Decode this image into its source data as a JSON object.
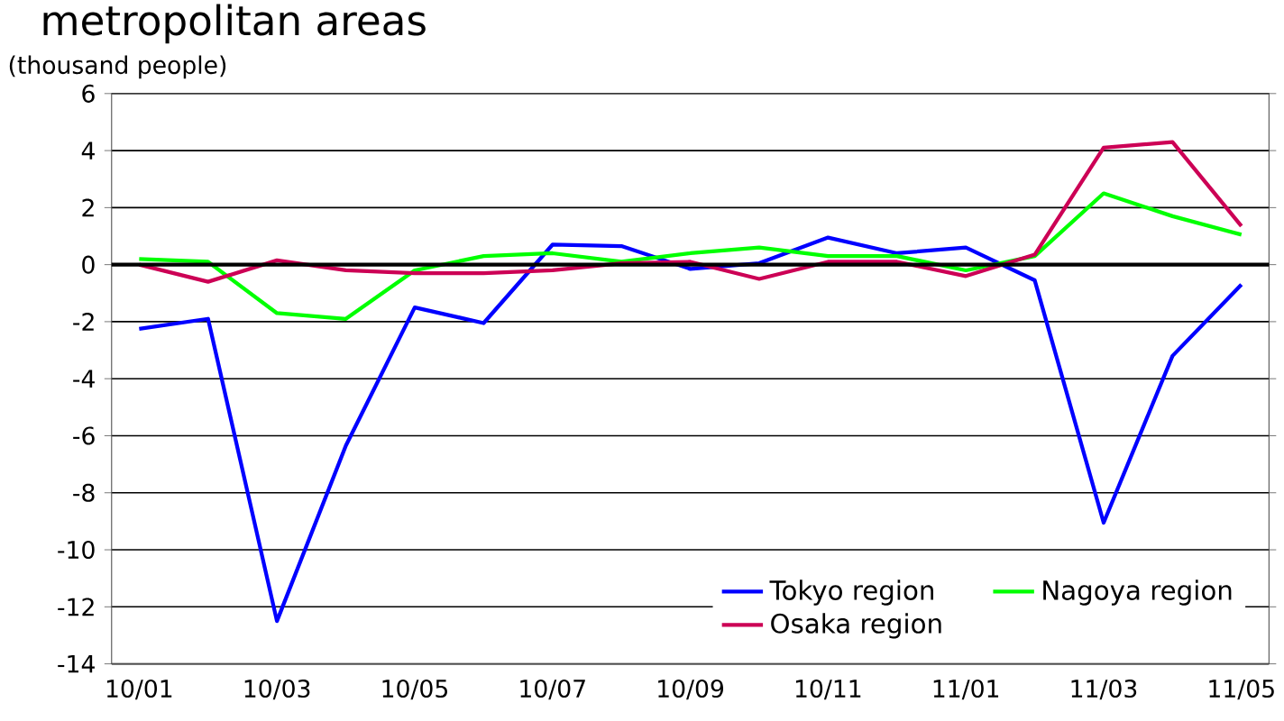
{
  "chart_data": {
    "type": "line",
    "title": "metropolitan areas",
    "ylabel": "(thousand people)",
    "categories": [
      "10/01",
      null,
      "10/03",
      null,
      "10/05",
      null,
      "10/07",
      null,
      "10/09",
      null,
      "10/11",
      null,
      "11/01",
      null,
      "11/03",
      null,
      "11/05"
    ],
    "series": [
      {
        "name": "Tokyo region",
        "color": "#0000ff",
        "values": [
          -2.25,
          -1.9,
          -12.5,
          -6.35,
          -1.5,
          -2.05,
          0.7,
          0.65,
          -0.15,
          0.05,
          0.95,
          0.4,
          0.6,
          -0.55,
          -9.05,
          -3.2,
          -0.7
        ]
      },
      {
        "name": "Nagoya region",
        "color": "#00ff00",
        "values": [
          0.2,
          0.1,
          -1.7,
          -1.9,
          -0.2,
          0.3,
          0.4,
          0.1,
          0.4,
          0.6,
          0.3,
          0.3,
          -0.2,
          0.3,
          2.5,
          1.7,
          1.05
        ]
      },
      {
        "name": "Osaka region",
        "color": "#cc0055",
        "values": [
          0,
          -0.6,
          0.15,
          -0.2,
          -0.3,
          -0.3,
          -0.2,
          0.05,
          0.1,
          -0.5,
          0.1,
          0.1,
          -0.4,
          0.35,
          4.1,
          4.3,
          1.35
        ]
      }
    ],
    "ylim": [
      -14,
      6
    ],
    "yticks": [
      -14,
      -12,
      -10,
      -8,
      -6,
      -4,
      -2,
      0,
      2,
      4,
      6
    ],
    "grid": "y",
    "legend": "bottom right",
    "marker": "none",
    "line_style": "solid",
    "ref_lines": [
      {
        "axis": "y",
        "value": 0,
        "color": "#000000"
      }
    ]
  }
}
